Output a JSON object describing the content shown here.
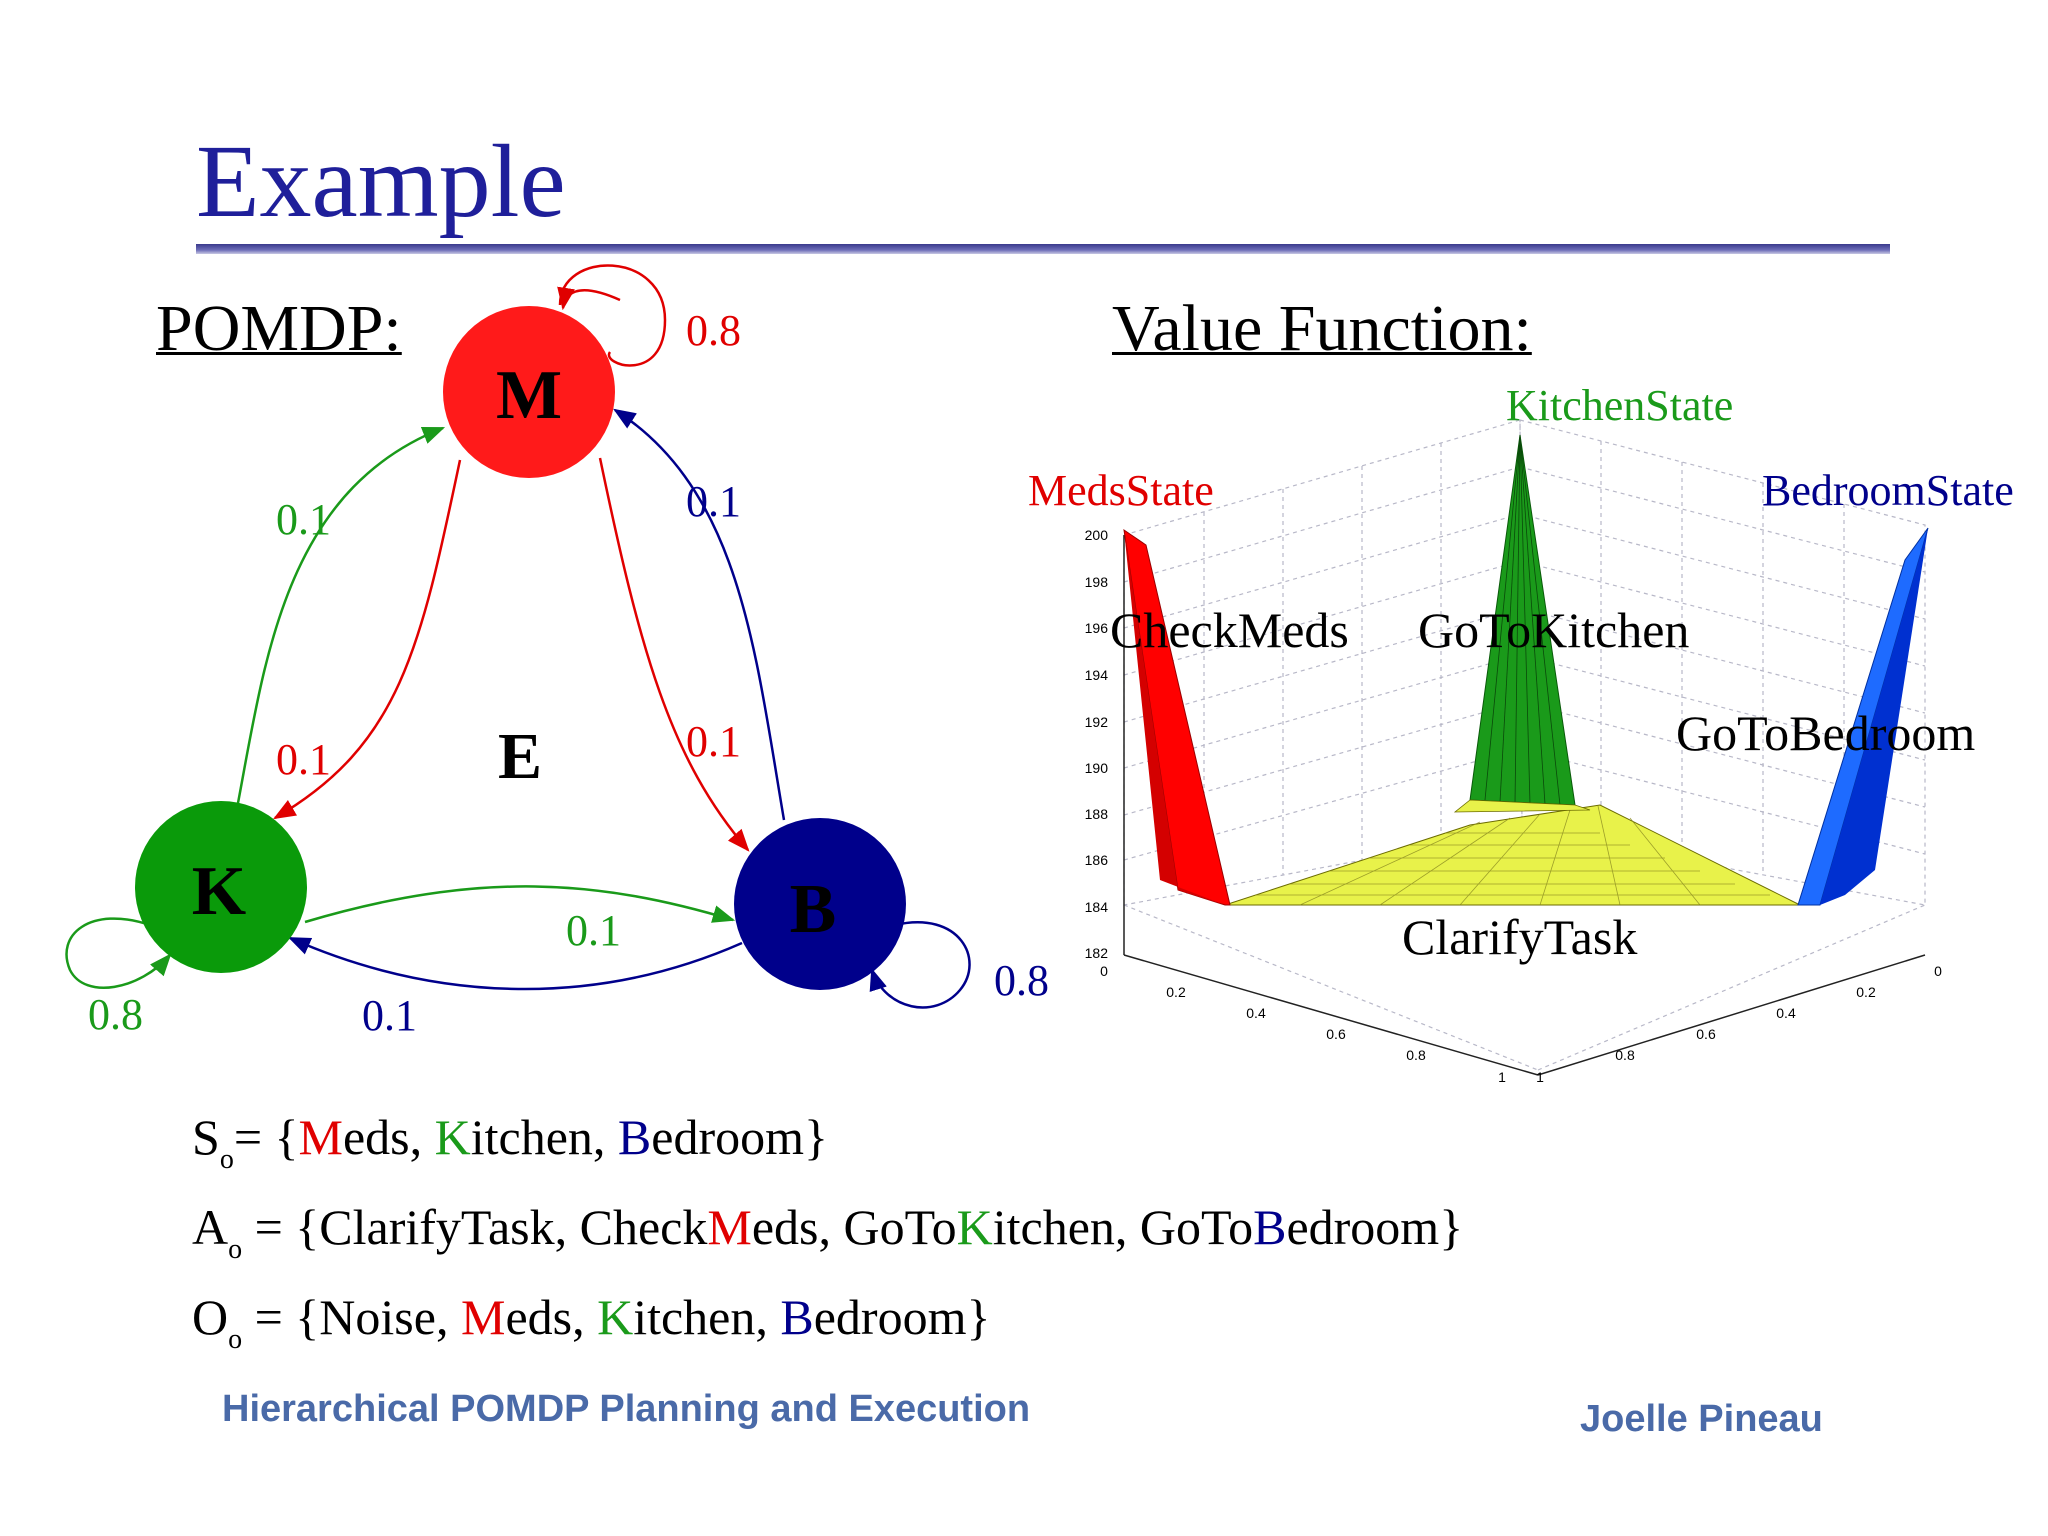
{
  "slide": {
    "title": "Example",
    "pomdp_heading": "POMDP:",
    "value_function_heading": "Value Function:"
  },
  "pomdp_graph": {
    "nodes": {
      "M": {
        "label": "M",
        "color": "#ff1a1a"
      },
      "K": {
        "label": "K",
        "color": "#0a9a0a"
      },
      "B": {
        "label": "B",
        "color": "#00008b"
      },
      "E": {
        "label": "E"
      }
    },
    "edges": {
      "m_self": "0.8",
      "k_self": "0.8",
      "b_self": "0.8",
      "k_to_m": "0.1",
      "m_to_k": "0.1",
      "m_to_b": "0.1",
      "b_to_m": "0.1",
      "k_to_b": "0.1",
      "b_to_k": "0.1"
    },
    "colors": {
      "red": "#e00000",
      "green": "#1a9a1a",
      "blue": "#00008b"
    }
  },
  "value_function": {
    "state_labels": {
      "meds": "MedsState",
      "kitchen": "KitchenState",
      "bedroom": "BedroomState"
    },
    "action_labels": {
      "check_meds": "CheckMeds",
      "go_to_kitchen": "GoToKitchen",
      "go_to_bedroom": "GoToBedroom",
      "clarify_task": "ClarifyTask"
    },
    "z_ticks": [
      "200",
      "198",
      "196",
      "194",
      "192",
      "190",
      "188",
      "186",
      "184",
      "182"
    ],
    "x_ticks": [
      "0",
      "0.2",
      "0.4",
      "0.6",
      "0.8",
      "1"
    ],
    "y_ticks": [
      "1",
      "0.8",
      "0.6",
      "0.4",
      "0.2",
      "0"
    ],
    "colors": {
      "meds": "#ff0000",
      "kitchen": "#1a9a1a",
      "bedroom": "#1e6bff",
      "plane": "#e8f24a"
    }
  },
  "sets": {
    "s": {
      "symbol": "S",
      "sub": "o",
      "open": "= {",
      "m": "M",
      "m_rest": "eds, ",
      "k": "K",
      "k_rest": "itchen, ",
      "b": "B",
      "b_rest": "edroom}"
    },
    "a": {
      "symbol": "A",
      "sub": "o",
      "open": " = {ClarifyTask, Check",
      "m": "M",
      "m_rest": "eds, GoTo",
      "k": "K",
      "k_rest": "itchen, GoTo",
      "b": "B",
      "b_rest": "edroom}"
    },
    "o": {
      "symbol": "O",
      "sub": "o",
      "open": " = {Noise, ",
      "m": "M",
      "m_rest": "eds, ",
      "k": "K",
      "k_rest": "itchen, ",
      "b": "B",
      "b_rest": "edroom}"
    }
  },
  "footer": {
    "title": "Hierarchical POMDP Planning and Execution",
    "author": "Joelle Pineau"
  }
}
